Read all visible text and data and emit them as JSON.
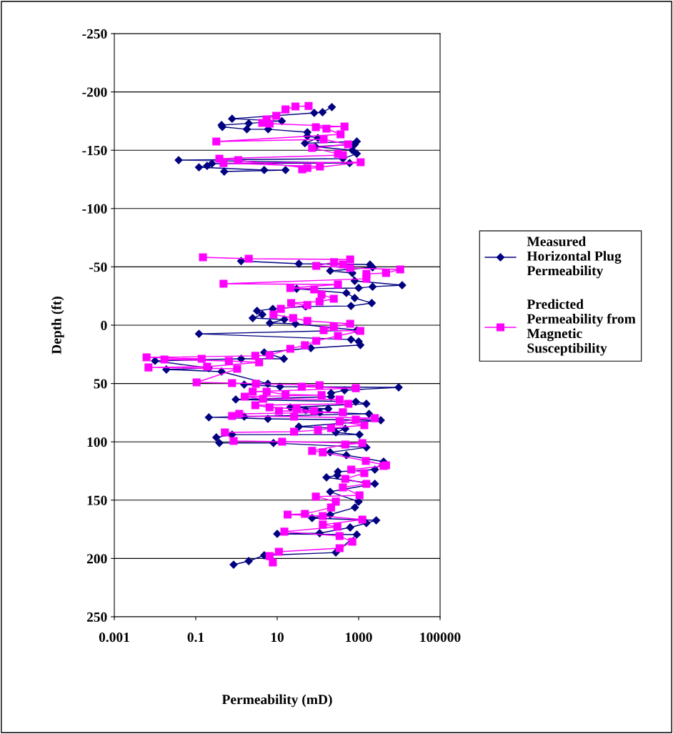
{
  "chart_data": {
    "type": "line",
    "xlabel": "Permeability (mD)",
    "ylabel": "Depth (ft)",
    "log": "x",
    "grid": "y",
    "legend": "right",
    "line_style": "solid",
    "xlim": [
      0.001,
      100000
    ],
    "xticks": [
      0.001,
      0.1,
      10,
      1000,
      100000
    ],
    "ylim": [
      250,
      -250
    ],
    "yticks": [
      -250,
      -200,
      -150,
      -100,
      -50,
      0,
      50,
      100,
      150,
      200,
      250
    ],
    "series": [
      {
        "name": "Measured Horizontal Plug Permeability",
        "color": "#000080",
        "marker": "diamond",
        "x": [
          220,
          130,
          81,
          0.78,
          13,
          2.0,
          0.43,
          0.45,
          1.8,
          6.0,
          55,
          55,
          100,
          48,
          900,
          800,
          87,
          700,
          900,
          410,
          0.038,
          600,
          0.25,
          0.19,
          0.12,
          4.8,
          16,
          0.5,
          null,
          1.3,
          34,
          1900,
          2200,
          200,
          700,
          800,
          11700,
          2200,
          1000,
          30,
          500,
          800,
          2100,
          650,
          50,
          7.8,
          3.2,
          4.3,
          2.5,
          15,
          6.6,
          28,
          900,
          0.12,
          650,
          1000,
          1100,
          67,
          4.8,
          14.6,
          1.3,
          0.01,
          0.21,
          0.019,
          0.43,
          5.9,
          1.55,
          11.7,
          9600,
          450,
          210,
          210,
          0.96,
          850,
          1550,
          21,
          180,
          50,
          112,
          1800,
          1.55,
          0.21,
          5.9,
          3500,
          34,
          470,
          275,
          1050,
          0.78,
          0.32,
          0.38,
          8.1,
          1550,
          200,
          500,
          4100,
          2500,
          310,
          300,
          162,
          2500,
          200,
          1000,
          810,
          200,
          72,
          2700,
          1550,
          620,
          110,
          10,
          900,
          275,
          4.8,
          2.0,
          0.85
        ],
        "values": [
          -187,
          -182.6,
          -182,
          -177,
          -175,
          -173,
          -171.6,
          -170,
          -168,
          -168,
          -165.4,
          -162,
          -160.5,
          -156,
          -157.5,
          -155,
          -153,
          -150,
          -147,
          -142.8,
          -141.5,
          -139,
          -138.5,
          -136.6,
          -135.4,
          -133,
          -133,
          -131.7,
          null,
          -55,
          -52.7,
          -52,
          -49.6,
          -46.6,
          -44.7,
          -38,
          -34.3,
          -33,
          -31.9,
          -31.2,
          -27.6,
          -23.3,
          -19,
          -16.5,
          -16,
          -14,
          -12.3,
          -9.2,
          -6.1,
          -4.9,
          -1.8,
          -1.2,
          4.3,
          7.4,
          12.3,
          14,
          17,
          19.6,
          23.3,
          28.8,
          28.8,
          30.6,
          36.8,
          38,
          39.8,
          50.2,
          50.9,
          52.7,
          53.3,
          55.8,
          58.2,
          61.3,
          63.7,
          65.6,
          67.4,
          70.5,
          71.7,
          72.9,
          74.7,
          76,
          78.4,
          79,
          80.3,
          81.5,
          87,
          88.8,
          91.9,
          93.8,
          93.8,
          96.2,
          101,
          101,
          104.8,
          109,
          111.5,
          117,
          123.8,
          125.6,
          128.7,
          130.5,
          136,
          142.8,
          151.3,
          156.3,
          162.4,
          165.4,
          167.3,
          169.7,
          173.4,
          178.3,
          178.9,
          179.5,
          194.9,
          197.3,
          202.2,
          205.3
        ]
      },
      {
        "name": "Predicted Permeability from Magnetic Susceptibility",
        "color": "#ff00ff",
        "marker": "square",
        "x": [
          59,
          28,
          16,
          9.5,
          5.5,
          4.3,
          6.5,
          450,
          89,
          162,
          360,
          0.32,
          138,
          550,
          72,
          310,
          410,
          0.38,
          1.1,
          55,
          41,
          1120,
          0.48,
          112,
          null,
          0.15,
          2.0,
          620,
          410,
          250,
          91,
          620,
          10500,
          4700,
          1550,
          1550,
          0.48,
          310,
          21,
          81,
          123,
          245,
          110,
          22,
          55,
          12.3,
          8.1,
          24.6,
          55,
          620,
          245,
          138,
          1100,
          310,
          91,
          48,
          21,
          6.5,
          2.9,
          0.0062,
          0.14,
          0.017,
          0.65,
          3.6,
          0.19,
          0.0069,
          1.04,
          0.105,
          0.78,
          3.0,
          110,
          40,
          850,
          2.5,
          5.5,
          16,
          123,
          1.6,
          4.5,
          340,
          560,
          2.9,
          6.5,
          30,
          81,
          11,
          410,
          1.17,
          0.78,
          26,
          2500,
          850,
          340,
          1380,
          210,
          100,
          26,
          0.52,
          0.85,
          13.2,
          1230,
          470,
          72,
          132,
          1500,
          4700,
          4100,
          660,
          1380,
          470,
          1550,
          410,
          1050,
          89,
          275,
          210,
          48,
          18,
          132,
          1230,
          132,
          300,
          15,
          340,
          700,
          340,
          11,
          6.5,
          7.8
        ],
        "values": [
          -188,
          -187.5,
          -185,
          -179.5,
          -176.5,
          -173.4,
          -172.8,
          -170.3,
          -169.7,
          -168.5,
          -163.6,
          -157.5,
          -159.3,
          -155,
          -152,
          -147,
          -145.8,
          -142.8,
          -141.5,
          -134.8,
          -133.6,
          -139.7,
          -139,
          -136,
          null,
          -58.2,
          -57,
          -56.4,
          -52.1,
          -54,
          -50.9,
          -49,
          -47.8,
          -44.7,
          -44,
          -39.8,
          -35.5,
          -34.9,
          -31.9,
          -30.6,
          -26.3,
          -22.7,
          -20.2,
          -19,
          -17.2,
          -14,
          -9.2,
          -6.1,
          -3.7,
          -1.2,
          1.2,
          4.3,
          4.9,
          9.2,
          13.5,
          17.2,
          20.2,
          25.7,
          26.3,
          27.6,
          28.8,
          29.4,
          30.6,
          31.9,
          35.5,
          36.2,
          37.4,
          49,
          49.6,
          50.2,
          51.5,
          52.7,
          54,
          57,
          57,
          59.4,
          60,
          61.3,
          63.1,
          63.7,
          67.4,
          68.6,
          70.5,
          71.7,
          73.5,
          73.5,
          74.7,
          76,
          77.8,
          78.4,
          79.7,
          80.9,
          82.7,
          85.8,
          88.2,
          90,
          91.3,
          91.9,
          99.3,
          99.9,
          101.1,
          102.3,
          107.8,
          109,
          116.4,
          120.1,
          120.7,
          123.8,
          126.8,
          131.7,
          136,
          139.1,
          145.8,
          147,
          151.3,
          156.3,
          161.8,
          162.4,
          163.6,
          166.7,
          171,
          172.8,
          177,
          180.8,
          185.7,
          191.2,
          194.2,
          198,
          203.4
        ]
      }
    ]
  }
}
